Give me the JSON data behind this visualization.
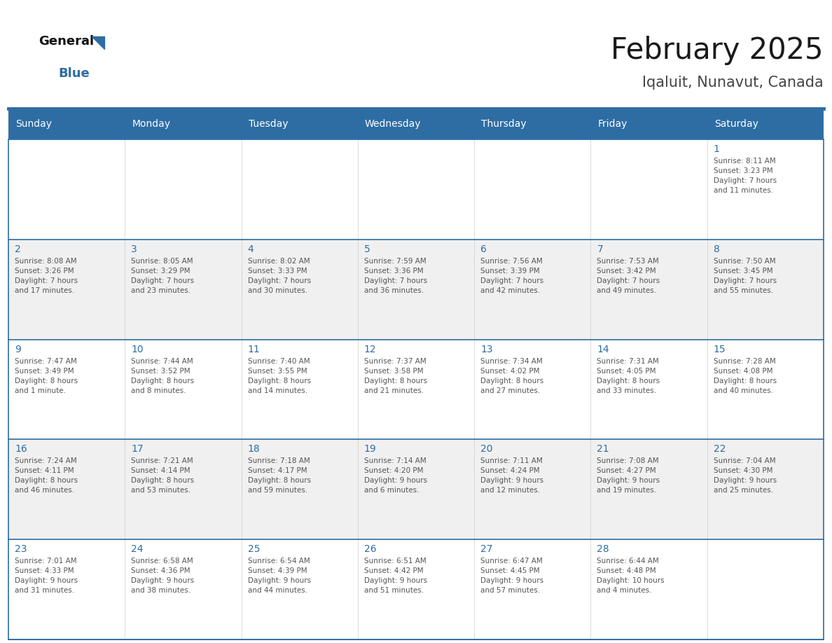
{
  "title": "February 2025",
  "subtitle": "Iqaluit, Nunavut, Canada",
  "header_bg": "#2E6DA4",
  "header_text_color": "#FFFFFF",
  "grid_line_color": "#2E6DA4",
  "day_number_color": "#2E6DA4",
  "info_text_color": "#555555",
  "bg_color": "#FFFFFF",
  "alt_row_bg": "#F0F0F0",
  "days_of_week": [
    "Sunday",
    "Monday",
    "Tuesday",
    "Wednesday",
    "Thursday",
    "Friday",
    "Saturday"
  ],
  "weeks": [
    [
      {
        "day": null,
        "info": null
      },
      {
        "day": null,
        "info": null
      },
      {
        "day": null,
        "info": null
      },
      {
        "day": null,
        "info": null
      },
      {
        "day": null,
        "info": null
      },
      {
        "day": null,
        "info": null
      },
      {
        "day": 1,
        "info": "Sunrise: 8:11 AM\nSunset: 3:23 PM\nDaylight: 7 hours\nand 11 minutes."
      }
    ],
    [
      {
        "day": 2,
        "info": "Sunrise: 8:08 AM\nSunset: 3:26 PM\nDaylight: 7 hours\nand 17 minutes."
      },
      {
        "day": 3,
        "info": "Sunrise: 8:05 AM\nSunset: 3:29 PM\nDaylight: 7 hours\nand 23 minutes."
      },
      {
        "day": 4,
        "info": "Sunrise: 8:02 AM\nSunset: 3:33 PM\nDaylight: 7 hours\nand 30 minutes."
      },
      {
        "day": 5,
        "info": "Sunrise: 7:59 AM\nSunset: 3:36 PM\nDaylight: 7 hours\nand 36 minutes."
      },
      {
        "day": 6,
        "info": "Sunrise: 7:56 AM\nSunset: 3:39 PM\nDaylight: 7 hours\nand 42 minutes."
      },
      {
        "day": 7,
        "info": "Sunrise: 7:53 AM\nSunset: 3:42 PM\nDaylight: 7 hours\nand 49 minutes."
      },
      {
        "day": 8,
        "info": "Sunrise: 7:50 AM\nSunset: 3:45 PM\nDaylight: 7 hours\nand 55 minutes."
      }
    ],
    [
      {
        "day": 9,
        "info": "Sunrise: 7:47 AM\nSunset: 3:49 PM\nDaylight: 8 hours\nand 1 minute."
      },
      {
        "day": 10,
        "info": "Sunrise: 7:44 AM\nSunset: 3:52 PM\nDaylight: 8 hours\nand 8 minutes."
      },
      {
        "day": 11,
        "info": "Sunrise: 7:40 AM\nSunset: 3:55 PM\nDaylight: 8 hours\nand 14 minutes."
      },
      {
        "day": 12,
        "info": "Sunrise: 7:37 AM\nSunset: 3:58 PM\nDaylight: 8 hours\nand 21 minutes."
      },
      {
        "day": 13,
        "info": "Sunrise: 7:34 AM\nSunset: 4:02 PM\nDaylight: 8 hours\nand 27 minutes."
      },
      {
        "day": 14,
        "info": "Sunrise: 7:31 AM\nSunset: 4:05 PM\nDaylight: 8 hours\nand 33 minutes."
      },
      {
        "day": 15,
        "info": "Sunrise: 7:28 AM\nSunset: 4:08 PM\nDaylight: 8 hours\nand 40 minutes."
      }
    ],
    [
      {
        "day": 16,
        "info": "Sunrise: 7:24 AM\nSunset: 4:11 PM\nDaylight: 8 hours\nand 46 minutes."
      },
      {
        "day": 17,
        "info": "Sunrise: 7:21 AM\nSunset: 4:14 PM\nDaylight: 8 hours\nand 53 minutes."
      },
      {
        "day": 18,
        "info": "Sunrise: 7:18 AM\nSunset: 4:17 PM\nDaylight: 8 hours\nand 59 minutes."
      },
      {
        "day": 19,
        "info": "Sunrise: 7:14 AM\nSunset: 4:20 PM\nDaylight: 9 hours\nand 6 minutes."
      },
      {
        "day": 20,
        "info": "Sunrise: 7:11 AM\nSunset: 4:24 PM\nDaylight: 9 hours\nand 12 minutes."
      },
      {
        "day": 21,
        "info": "Sunrise: 7:08 AM\nSunset: 4:27 PM\nDaylight: 9 hours\nand 19 minutes."
      },
      {
        "day": 22,
        "info": "Sunrise: 7:04 AM\nSunset: 4:30 PM\nDaylight: 9 hours\nand 25 minutes."
      }
    ],
    [
      {
        "day": 23,
        "info": "Sunrise: 7:01 AM\nSunset: 4:33 PM\nDaylight: 9 hours\nand 31 minutes."
      },
      {
        "day": 24,
        "info": "Sunrise: 6:58 AM\nSunset: 4:36 PM\nDaylight: 9 hours\nand 38 minutes."
      },
      {
        "day": 25,
        "info": "Sunrise: 6:54 AM\nSunset: 4:39 PM\nDaylight: 9 hours\nand 44 minutes."
      },
      {
        "day": 26,
        "info": "Sunrise: 6:51 AM\nSunset: 4:42 PM\nDaylight: 9 hours\nand 51 minutes."
      },
      {
        "day": 27,
        "info": "Sunrise: 6:47 AM\nSunset: 4:45 PM\nDaylight: 9 hours\nand 57 minutes."
      },
      {
        "day": 28,
        "info": "Sunrise: 6:44 AM\nSunset: 4:48 PM\nDaylight: 10 hours\nand 4 minutes."
      },
      {
        "day": null,
        "info": null
      }
    ]
  ],
  "logo_general_color": "#111111",
  "logo_blue_color": "#2E6DA4",
  "logo_triangle_color": "#2E6DA4"
}
